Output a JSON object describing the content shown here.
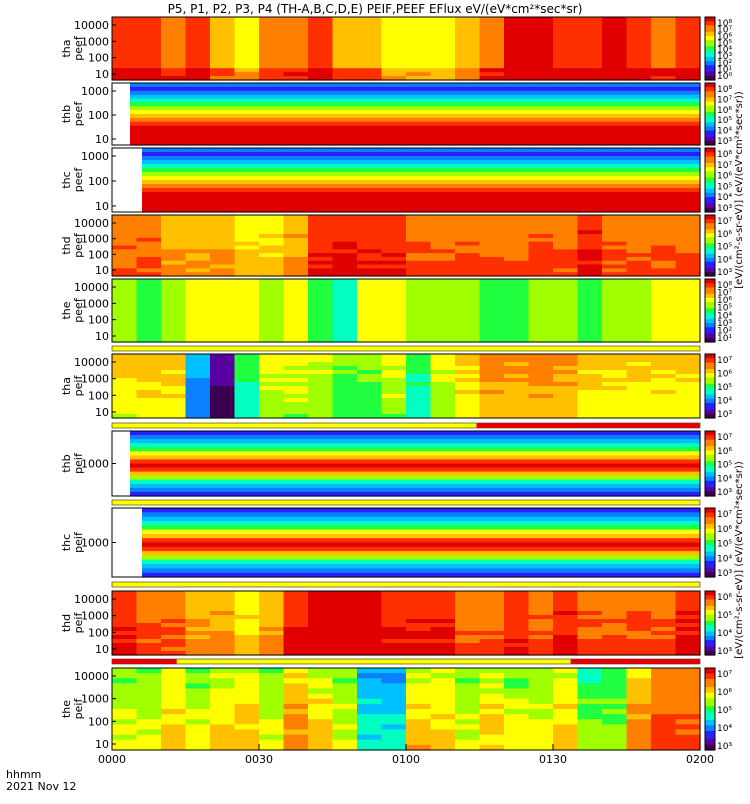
{
  "title": "P5, P1, P2, P3, P4 (TH-A,B,C,D,E) PEIF,PEEF EFlux eV/(eV*cm²*sec*sr)",
  "footer": {
    "time_fmt": "hhmm",
    "date": "2021 Nov 12"
  },
  "x_axis": {
    "ticks": [
      "0000",
      "0030",
      "0100",
      "0130",
      "0200"
    ]
  },
  "colorbar_label_electrons": "[eV/(cm²-s-sr-eV)] (eV/(eV*cm²*sec*sr))",
  "colorbar_label_ions": "[eV/(cm²-s-sr-eV)] (eV/(eV*cm²*sec*sr))",
  "colors": {
    "spectrum": [
      "#3d0050",
      "#5a00a0",
      "#2a20ff",
      "#0a80ff",
      "#00c0ff",
      "#00ffc0",
      "#20ff40",
      "#a0ff00",
      "#ffff00",
      "#ffc000",
      "#ff8000",
      "#ff3000",
      "#e00000"
    ],
    "flag_red": "#e00000",
    "flag_yellow": "#ffff00"
  },
  "chart_data": [
    {
      "type": "heatmap",
      "probe": "tha",
      "species": "peef",
      "ylabel": "tha\npeef",
      "y_ticks": [
        "10000",
        "1000",
        "100",
        "10"
      ],
      "cbar_ticks": [
        "10⁸",
        "10⁷",
        "10⁶",
        "10⁵",
        "10⁴",
        "10³",
        "10²",
        "10¹",
        "10⁰"
      ],
      "columns": [
        11,
        11,
        10,
        11,
        9,
        8,
        10,
        10,
        11,
        9,
        9,
        8,
        8,
        8,
        9,
        10,
        12,
        12,
        11,
        11,
        12,
        11,
        10,
        11
      ],
      "gradient": 1
    },
    {
      "type": "heatmap",
      "probe": "thb",
      "species": "peef",
      "ylabel": "thb\npeef",
      "y_ticks": [
        "1000",
        "100",
        "10"
      ],
      "cbar_ticks": [
        "10⁸",
        "10⁷",
        "10⁶",
        "10⁵",
        "10⁴",
        "10³"
      ],
      "columns": [
        12,
        12,
        12,
        12,
        12,
        12,
        12,
        12,
        12,
        12,
        12,
        12,
        12,
        12,
        12,
        12,
        12,
        12,
        12,
        12,
        12,
        12,
        12,
        12
      ],
      "gradient": 2
    },
    {
      "type": "heatmap",
      "probe": "thc",
      "species": "peef",
      "ylabel": "thc\npeef",
      "y_ticks": [
        "1000",
        "100",
        "10"
      ],
      "cbar_ticks": [
        "10⁸",
        "10⁷",
        "10⁶",
        "10⁵",
        "10⁴",
        "10³"
      ],
      "columns": [
        12,
        12,
        12,
        12,
        12,
        12,
        12,
        12,
        12,
        12,
        12,
        12,
        12,
        12,
        12,
        12,
        12,
        12,
        12,
        12,
        12,
        12,
        12,
        12
      ],
      "gradient": 2
    },
    {
      "type": "heatmap",
      "probe": "thd",
      "species": "peef",
      "ylabel": "thd\npeef",
      "y_ticks": [
        "10000",
        "1000",
        "100",
        "10"
      ],
      "cbar_ticks": [
        "10⁷",
        "10⁶",
        "10⁵",
        "10⁴",
        "10³"
      ],
      "columns": [
        10,
        10,
        9,
        9,
        9,
        8,
        8,
        9,
        11,
        11,
        11,
        11,
        10,
        10,
        10,
        10,
        10,
        10,
        10,
        11,
        10,
        10,
        10,
        10
      ],
      "gradient": 3
    },
    {
      "type": "heatmap",
      "probe": "the",
      "species": "peef",
      "ylabel": "the\npeef",
      "y_ticks": [
        "10000",
        "1000",
        "100",
        "10"
      ],
      "cbar_ticks": [
        "10⁸",
        "10⁷",
        "10⁶",
        "10⁵",
        "10⁴",
        "10³",
        "10²",
        "10¹"
      ],
      "columns": [
        7,
        6,
        7,
        8,
        8,
        8,
        7,
        8,
        6,
        5,
        8,
        8,
        7,
        7,
        7,
        6,
        6,
        7,
        7,
        6,
        7,
        7,
        8,
        8
      ],
      "gradient": 4
    },
    {
      "type": "heatmap",
      "probe": "tha",
      "species": "peif",
      "ylabel": "tha\npeif",
      "y_ticks": [
        "10000",
        "1000",
        "100",
        "10"
      ],
      "cbar_ticks": [
        "10⁷",
        "10⁶",
        "10⁵",
        "10⁴",
        "10³"
      ],
      "columns": [
        9,
        9,
        9,
        4,
        1,
        6,
        8,
        8,
        8,
        7,
        7,
        8,
        6,
        8,
        9,
        10,
        10,
        10,
        10,
        9,
        9,
        9,
        9,
        9
      ],
      "gradient": 5
    },
    {
      "type": "heatmap",
      "probe": "thb",
      "species": "peif",
      "ylabel": "thb\npeif",
      "y_ticks": [
        "1000"
      ],
      "cbar_ticks": [
        "10⁷",
        "10⁶",
        "10⁵",
        "10⁴",
        "10³"
      ],
      "columns": [
        12,
        12,
        12,
        12,
        12,
        12,
        12,
        12,
        12,
        12,
        12,
        12,
        12,
        12,
        12,
        12,
        12,
        12,
        12,
        12,
        12,
        12,
        12,
        12
      ],
      "gradient": 6
    },
    {
      "type": "heatmap",
      "probe": "thc",
      "species": "peif",
      "ylabel": "thc\npeif",
      "y_ticks": [
        "1000"
      ],
      "cbar_ticks": [
        "10⁷",
        "10⁶",
        "10⁵",
        "10⁴",
        "10³"
      ],
      "columns": [
        12,
        12,
        12,
        12,
        12,
        12,
        12,
        12,
        12,
        12,
        12,
        12,
        12,
        12,
        12,
        12,
        12,
        12,
        12,
        12,
        12,
        12,
        12,
        12
      ],
      "gradient": 6
    },
    {
      "type": "heatmap",
      "probe": "thd",
      "species": "peif",
      "ylabel": "thd\npeif",
      "y_ticks": [
        "10000",
        "1000",
        "100",
        "10"
      ],
      "cbar_ticks": [
        "10⁶",
        "10⁵",
        "10⁴",
        "10³"
      ],
      "columns": [
        11,
        10,
        10,
        9,
        9,
        8,
        9,
        11,
        12,
        12,
        12,
        11,
        11,
        11,
        10,
        10,
        11,
        10,
        11,
        10,
        10,
        10,
        10,
        11
      ],
      "gradient": 3
    },
    {
      "type": "heatmap",
      "probe": "the",
      "species": "peif",
      "ylabel": "the\npeif",
      "y_ticks": [
        "10000",
        "1000",
        "100",
        "10"
      ],
      "cbar_ticks": [
        "10⁷",
        "10⁶",
        "10⁵",
        "10⁴",
        "10³"
      ],
      "columns": [
        7,
        7,
        8,
        7,
        8,
        8,
        7,
        9,
        8,
        7,
        4,
        4,
        8,
        8,
        7,
        8,
        7,
        7,
        8,
        6,
        6,
        9,
        10,
        10
      ],
      "gradient": 7
    }
  ]
}
